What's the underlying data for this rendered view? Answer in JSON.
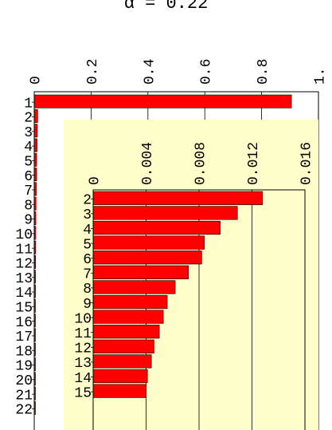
{
  "title": "α = 0.22",
  "chart_data": [
    {
      "type": "bar",
      "orientation": "horizontal",
      "title": "α = 0.22",
      "xlabel": "",
      "ylabel": "",
      "xlim": [
        0,
        1
      ],
      "x_ticks": [
        "0",
        "0.2",
        "0.4",
        "0.6",
        "0.8",
        "1."
      ],
      "tick_label_rotation": "vertical",
      "grid": true,
      "categories": [
        "1",
        "2",
        "3",
        "4",
        "5",
        "6",
        "7",
        "8",
        "9",
        "10",
        "11",
        "12",
        "13",
        "14",
        "15",
        "16",
        "17",
        "18",
        "19",
        "20",
        "21",
        "22"
      ],
      "values": [
        0.905,
        0.012,
        0.011,
        0.01,
        0.0085,
        0.0085,
        0.0075,
        0.0063,
        0.0057,
        0.0054,
        0.0052,
        0.0047,
        0.0044,
        0.0043,
        0.0041,
        0.0038,
        0.0035,
        0.0033,
        0.0032,
        0.003,
        0.0028,
        0.0027
      ],
      "bar_color": "#ff0000",
      "background": "#ffffff"
    },
    {
      "type": "bar",
      "orientation": "horizontal",
      "role": "inset",
      "xlim": [
        0,
        0.016
      ],
      "x_ticks": [
        "0",
        "0.004",
        "0.008",
        "0.012",
        "0.016"
      ],
      "tick_label_rotation": "vertical",
      "grid": true,
      "categories": [
        "2",
        "3",
        "4",
        "5",
        "6",
        "7",
        "8",
        "9",
        "10",
        "11",
        "12",
        "13",
        "14",
        "15"
      ],
      "values": [
        0.0128,
        0.0109,
        0.0096,
        0.0084,
        0.0082,
        0.0072,
        0.0062,
        0.0056,
        0.0053,
        0.005,
        0.0046,
        0.0044,
        0.0041,
        0.004
      ],
      "bar_color": "#ff0000",
      "background": "#ffffcc"
    }
  ]
}
